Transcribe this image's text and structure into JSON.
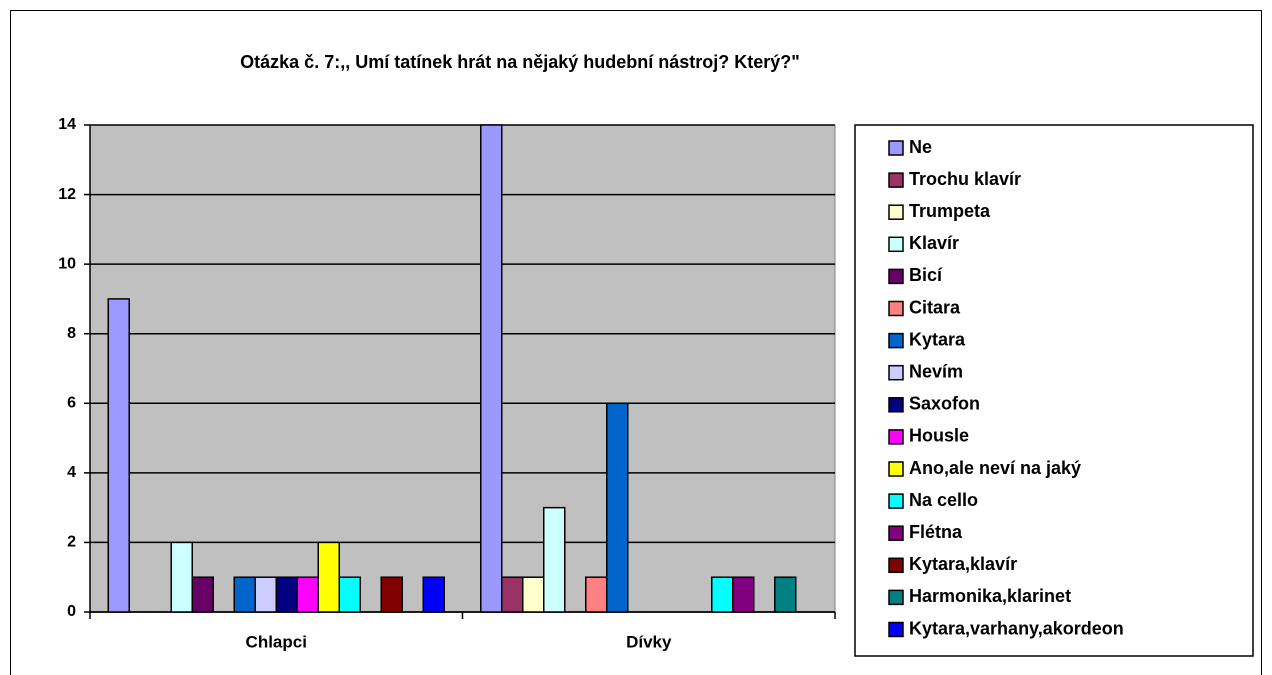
{
  "chart_data": {
    "type": "bar",
    "title": "Otázka č. 7:,, Umí tatínek hrát na nějaký hudební nástroj? Který?\"",
    "categories": [
      "Chlapci",
      "Dívky"
    ],
    "series": [
      {
        "name": "Ne",
        "color": "#9999FF",
        "values": [
          9,
          14
        ]
      },
      {
        "name": "Trochu klavír",
        "color": "#993366",
        "values": [
          0,
          1
        ]
      },
      {
        "name": "Trumpeta",
        "color": "#FFFFCC",
        "values": [
          0,
          1
        ]
      },
      {
        "name": "Klavír",
        "color": "#CCFFFF",
        "values": [
          2,
          3
        ]
      },
      {
        "name": "Bicí",
        "color": "#660066",
        "values": [
          1,
          0
        ]
      },
      {
        "name": "Citara",
        "color": "#FF8080",
        "values": [
          0,
          1
        ]
      },
      {
        "name": "Kytara",
        "color": "#0066CC",
        "values": [
          1,
          6
        ]
      },
      {
        "name": "Nevím",
        "color": "#CCCCFF",
        "values": [
          1,
          0
        ]
      },
      {
        "name": "Saxofon",
        "color": "#000080",
        "values": [
          1,
          0
        ]
      },
      {
        "name": "Housle",
        "color": "#FF00FF",
        "values": [
          1,
          0
        ]
      },
      {
        "name": "Ano,ale neví na jaký",
        "color": "#FFFF00",
        "values": [
          2,
          0
        ]
      },
      {
        "name": "Na cello",
        "color": "#00FFFF",
        "values": [
          1,
          1
        ]
      },
      {
        "name": "Flétna",
        "color": "#800080",
        "values": [
          0,
          1
        ]
      },
      {
        "name": "Kytara,klavír",
        "color": "#800000",
        "values": [
          1,
          0
        ]
      },
      {
        "name": "Harmonika,klarinet",
        "color": "#008080",
        "values": [
          0,
          1
        ]
      },
      {
        "name": "Kytara,varhany,akordeon",
        "color": "#0000FF",
        "values": [
          1,
          0
        ]
      }
    ],
    "ylim": [
      0,
      14
    ],
    "yticks": [
      0,
      2,
      4,
      6,
      8,
      10,
      12,
      14
    ],
    "grid": true,
    "legend": "right"
  }
}
